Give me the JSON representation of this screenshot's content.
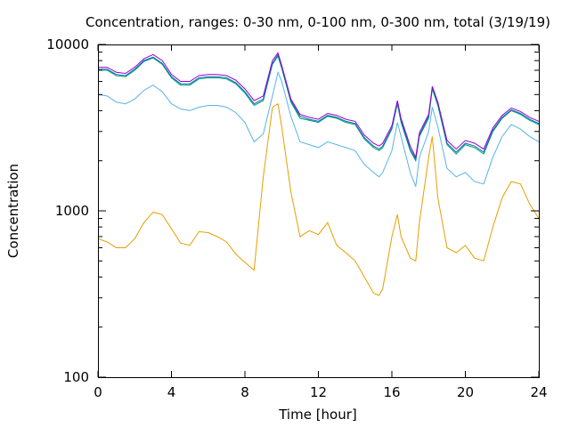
{
  "chart_data": {
    "type": "line",
    "title": "Concentration, ranges: 0-30 nm, 0-100 nm, 0-300 nm, total (3/19/19)",
    "xlabel": "Time [hour]",
    "ylabel": "Concentration",
    "xlim": [
      0,
      24
    ],
    "ylim": [
      100,
      10000
    ],
    "yscale": "log",
    "x_ticks": [
      0,
      4,
      8,
      12,
      16,
      20,
      24
    ],
    "y_ticks": [
      100,
      1000,
      10000
    ],
    "y_minor_ticks": [
      200,
      300,
      400,
      500,
      600,
      700,
      800,
      900,
      2000,
      3000,
      4000,
      5000,
      6000,
      7000,
      8000,
      9000
    ],
    "grid": false,
    "x": [
      0,
      0.5,
      1,
      1.5,
      2,
      2.5,
      3,
      3.5,
      4,
      4.5,
      5,
      5.5,
      6,
      6.5,
      7,
      7.5,
      8,
      8.5,
      9,
      9.5,
      9.8,
      10,
      10.5,
      11,
      11.5,
      12,
      12.5,
      13,
      13.5,
      14,
      14.5,
      15,
      15.3,
      15.5,
      16,
      16.3,
      16.5,
      17,
      17.3,
      17.5,
      18,
      18.2,
      18.5,
      19,
      19.5,
      20,
      20.5,
      21,
      21.5,
      22,
      22.5,
      23,
      23.5,
      24
    ],
    "series": [
      {
        "color": "#e69f00",
        "values": [
          680,
          650,
          600,
          600,
          680,
          850,
          980,
          950,
          780,
          640,
          620,
          750,
          740,
          700,
          650,
          550,
          490,
          440,
          1600,
          4200,
          4400,
          3200,
          1300,
          700,
          760,
          720,
          850,
          620,
          560,
          500,
          400,
          320,
          310,
          340,
          700,
          950,
          700,
          520,
          500,
          850,
          2100,
          2800,
          1200,
          600,
          560,
          620,
          520,
          500,
          800,
          1200,
          1500,
          1450,
          1100,
          900
        ]
      },
      {
        "color": "#56b4e9",
        "values": [
          5000,
          4900,
          4500,
          4400,
          4700,
          5300,
          5700,
          5200,
          4400,
          4100,
          4000,
          4200,
          4300,
          4300,
          4200,
          3900,
          3400,
          2600,
          2900,
          4900,
          6800,
          6000,
          3700,
          2600,
          2500,
          2400,
          2600,
          2500,
          2400,
          2300,
          1900,
          1700,
          1600,
          1700,
          2300,
          3400,
          2800,
          1700,
          1400,
          2100,
          3000,
          4200,
          3200,
          1800,
          1600,
          1700,
          1500,
          1450,
          2100,
          2800,
          3300,
          3100,
          2800,
          2600
        ]
      },
      {
        "color": "#009e73",
        "values": [
          7000,
          7000,
          6500,
          6400,
          7000,
          7900,
          8300,
          7600,
          6300,
          5700,
          5700,
          6200,
          6300,
          6300,
          6200,
          5800,
          5100,
          4300,
          4600,
          7600,
          8500,
          7200,
          4500,
          3600,
          3500,
          3400,
          3700,
          3600,
          3400,
          3300,
          2700,
          2400,
          2300,
          2400,
          3100,
          4400,
          3400,
          2300,
          2000,
          2800,
          3600,
          5400,
          4300,
          2500,
          2200,
          2500,
          2400,
          2200,
          3000,
          3600,
          4000,
          3800,
          3500,
          3300
        ]
      },
      {
        "color": "#0072b2",
        "values": [
          7100,
          7100,
          6600,
          6500,
          7100,
          8000,
          8400,
          7700,
          6400,
          5800,
          5800,
          6300,
          6400,
          6400,
          6300,
          5900,
          5200,
          4400,
          4700,
          7700,
          8700,
          7300,
          4600,
          3700,
          3550,
          3450,
          3750,
          3650,
          3450,
          3350,
          2750,
          2450,
          2350,
          2450,
          3150,
          4500,
          3500,
          2350,
          2050,
          2850,
          3700,
          5500,
          4400,
          2550,
          2250,
          2550,
          2450,
          2250,
          3050,
          3650,
          4050,
          3850,
          3550,
          3350
        ]
      },
      {
        "color": "#9400d3",
        "values": [
          7300,
          7300,
          6800,
          6700,
          7300,
          8200,
          8700,
          8000,
          6600,
          6000,
          6000,
          6500,
          6600,
          6600,
          6500,
          6100,
          5400,
          4600,
          4900,
          8000,
          8900,
          7500,
          4700,
          3800,
          3650,
          3550,
          3850,
          3750,
          3550,
          3450,
          2850,
          2550,
          2450,
          2550,
          3250,
          4600,
          3600,
          2450,
          2100,
          2950,
          3800,
          5600,
          4500,
          2650,
          2350,
          2650,
          2550,
          2350,
          3150,
          3750,
          4150,
          3950,
          3650,
          3450
        ]
      }
    ]
  }
}
